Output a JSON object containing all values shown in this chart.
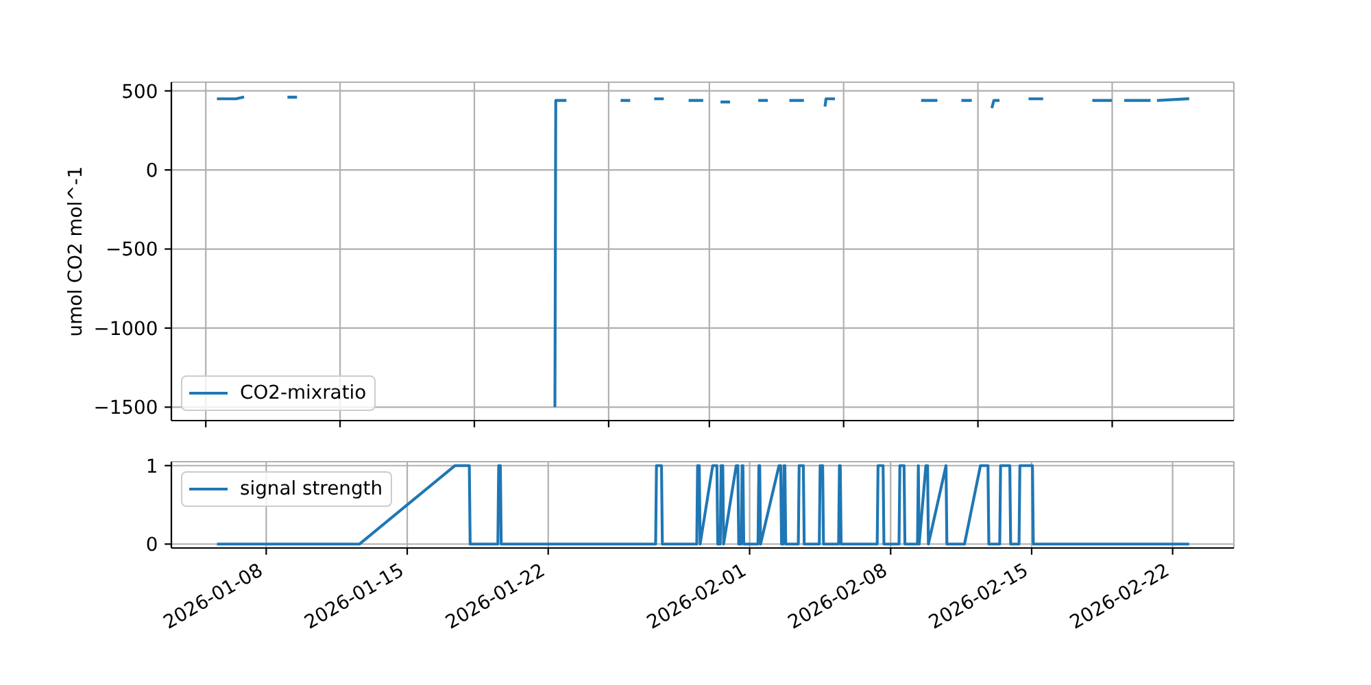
{
  "chart_data": [
    {
      "type": "line",
      "ylabel": "umol CO2 mol^-1",
      "x": [
        "2026-01-05T15:00",
        "2026-01-06T12:00",
        "2026-01-06T20:00",
        "2026-01-07T00:00",
        "2026-01-09T03:00",
        "2026-01-09T11:00",
        "2026-01-09T16:00",
        "2026-01-22T08:00",
        "2026-01-22T09:00",
        "2026-01-22T20:00",
        "2026-01-23T00:00",
        "2026-01-25T16:00",
        "2026-01-26T00:00",
        "2026-01-26T04:00",
        "2026-01-27T08:00",
        "2026-01-27T16:00",
        "2026-01-27T20:00",
        "2026-01-29T01:00",
        "2026-01-29T15:00",
        "2026-01-29T20:00",
        "2026-01-30T15:00",
        "2026-01-30T23:00",
        "2026-01-31T03:00",
        "2026-02-01T12:00",
        "2026-02-01T20:00",
        "2026-02-02T00:00",
        "2026-02-03T01:00",
        "2026-02-03T15:00",
        "2026-02-03T20:00",
        "2026-02-04T18:00",
        "2026-02-04T19:00",
        "2026-02-05T04:00",
        "2026-02-05T08:00",
        "2026-02-09T14:00",
        "2026-02-10T06:00",
        "2026-02-10T10:00",
        "2026-02-11T14:00",
        "2026-02-11T23:00",
        "2026-02-12T04:00",
        "2026-02-13T01:00",
        "2026-02-13T03:00",
        "2026-02-13T08:00",
        "2026-02-13T12:00",
        "2026-02-14T22:00",
        "2026-02-15T12:00",
        "2026-02-15T16:00",
        "2026-02-18T02:00",
        "2026-02-18T22:00",
        "2026-02-19T02:00",
        "2026-02-19T16:00",
        "2026-02-20T20:00",
        "2026-02-21T00:00",
        "2026-02-21T07:00",
        "2026-02-22T18:00"
      ],
      "series": [
        {
          "name": "CO2-mixratio",
          "color": "#1f77b4",
          "values": [
            450,
            450,
            460,
            null,
            460,
            460,
            null,
            -1490,
            440,
            440,
            null,
            440,
            440,
            null,
            450,
            450,
            null,
            440,
            440,
            null,
            430,
            430,
            null,
            440,
            440,
            null,
            440,
            440,
            null,
            410,
            450,
            450,
            null,
            440,
            440,
            null,
            440,
            440,
            null,
            400,
            440,
            440,
            null,
            450,
            450,
            null,
            440,
            440,
            null,
            440,
            440,
            null,
            440,
            450
          ]
        }
      ],
      "xlim": [
        "2026-01-03T07:00",
        "2026-02-25T01:00"
      ],
      "xticks": [
        {
          "value": "2026-01-05",
          "label": null
        },
        {
          "value": "2026-01-11T16:00",
          "label": null
        },
        {
          "value": "2026-01-18T08:00",
          "label": null
        },
        {
          "value": "2026-01-25",
          "label": null
        },
        {
          "value": "2026-01-30",
          "label": null
        },
        {
          "value": "2026-02-05T16:00",
          "label": null
        },
        {
          "value": "2026-02-12T08:00",
          "label": null
        },
        {
          "value": "2026-02-19",
          "label": null
        }
      ],
      "ylim": [
        -1585,
        555
      ],
      "yticks": [
        -1500,
        -1000,
        -500,
        0,
        500
      ],
      "tick_labels": "y",
      "grid": true,
      "legend": "bottom left"
    },
    {
      "type": "line",
      "x": [
        "2026-01-05T15:00",
        "2026-01-12T15:00",
        "2026-01-17T09:00",
        "2026-01-18T02:00",
        "2026-01-18T03:00",
        "2026-01-19T12:00",
        "2026-01-19T13:00",
        "2026-01-19T15:00",
        "2026-01-19T16:00",
        "2026-01-27T08:00",
        "2026-01-27T09:00",
        "2026-01-27T15:00",
        "2026-01-27T16:00",
        "2026-01-29T09:00",
        "2026-01-29T10:00",
        "2026-01-29T12:00",
        "2026-01-29T13:00",
        "2026-01-30T04:00",
        "2026-01-30T09:00",
        "2026-01-30T10:00",
        "2026-01-30T13:00",
        "2026-01-30T14:00",
        "2026-01-30T16:00",
        "2026-01-30T17:00",
        "2026-01-31T08:00",
        "2026-01-31T10:00",
        "2026-01-31T11:00",
        "2026-01-31T14:00",
        "2026-01-31T15:00",
        "2026-01-31T16:00",
        "2026-01-31T17:00",
        "2026-02-01T10:00",
        "2026-02-01T11:00",
        "2026-02-01T12:00",
        "2026-02-01T13:00",
        "2026-02-02T11:00",
        "2026-02-02T13:00",
        "2026-02-02T14:00",
        "2026-02-02T16:00",
        "2026-02-02T17:00",
        "2026-02-02T18:00",
        "2026-02-02T19:00",
        "2026-02-03T10:00",
        "2026-02-03T11:00",
        "2026-02-03T16:00",
        "2026-02-03T17:00",
        "2026-02-04T11:00",
        "2026-02-04T12:00",
        "2026-02-04T15:00",
        "2026-02-04T16:00",
        "2026-02-05T10:00",
        "2026-02-05T11:00",
        "2026-02-05T12:00",
        "2026-02-05T13:00",
        "2026-02-07T08:00",
        "2026-02-07T09:00",
        "2026-02-07T15:00",
        "2026-02-07T16:00",
        "2026-02-08T10:00",
        "2026-02-08T11:00",
        "2026-02-08T16:00",
        "2026-02-08T17:00",
        "2026-02-09T08:00",
        "2026-02-09T09:00",
        "2026-02-09T10:00",
        "2026-02-09T18:00",
        "2026-02-09T20:00",
        "2026-02-09T21:00",
        "2026-02-10T18:00",
        "2026-02-10T19:00",
        "2026-02-11T16:00",
        "2026-02-12T11:00",
        "2026-02-12T20:00",
        "2026-02-12T21:00",
        "2026-02-13T10:00",
        "2026-02-13T11:00",
        "2026-02-13T22:00",
        "2026-02-13T23:00",
        "2026-02-14T09:00",
        "2026-02-14T10:00",
        "2026-02-15T01:00",
        "2026-02-15T02:00",
        "2026-02-22T18:00"
      ],
      "series": [
        {
          "name": "signal strength",
          "color": "#1f77b4",
          "values": [
            0,
            0,
            1,
            1,
            0,
            0,
            1,
            1,
            0,
            0,
            1,
            1,
            0,
            0,
            1,
            1,
            0,
            1,
            1,
            0,
            0,
            1,
            1,
            0,
            1,
            1,
            0,
            0,
            1,
            1,
            0,
            0,
            1,
            1,
            0,
            1,
            1,
            0,
            0,
            1,
            1,
            0,
            0,
            1,
            1,
            0,
            0,
            1,
            1,
            0,
            0,
            1,
            1,
            0,
            0,
            1,
            1,
            0,
            0,
            1,
            1,
            0,
            0,
            1,
            0,
            1,
            1,
            0,
            1,
            0,
            0,
            1,
            1,
            0,
            0,
            1,
            1,
            0,
            0,
            1,
            1,
            0,
            0
          ]
        }
      ],
      "xlim": [
        "2026-01-03T07:00",
        "2026-02-25T01:00"
      ],
      "xticks": [
        "2026-01-08",
        "2026-01-15",
        "2026-01-22",
        "2026-02-01",
        "2026-02-08",
        "2026-02-15",
        "2026-02-22"
      ],
      "ylim": [
        -0.05,
        1.05
      ],
      "yticks": [
        0,
        1
      ],
      "grid": true,
      "legend": "top left"
    }
  ]
}
